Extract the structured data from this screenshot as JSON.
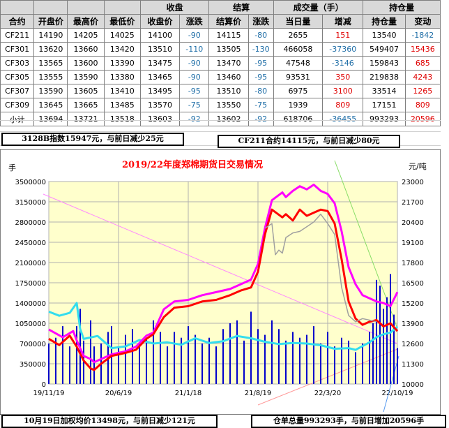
{
  "table": {
    "header_top": {
      "c0": "",
      "c1": "",
      "c2": "",
      "c3": "",
      "close_group": "收盘",
      "settle_group": "结算",
      "volume_group": "成交量（手）",
      "oi_group": "持仓量"
    },
    "header_sub": [
      "合约",
      "开盘价",
      "最高价",
      "最低价",
      "收盘价",
      "涨跌",
      "结算价",
      "涨跌",
      "当日量",
      "增减",
      "持仓量",
      "变动"
    ],
    "rows": [
      [
        "CF211",
        "14190",
        "14205",
        "14025",
        "14100",
        "-90",
        "14115",
        "-80",
        "2655",
        "151",
        "13540",
        "-1842"
      ],
      [
        "CF301",
        "13620",
        "13660",
        "13420",
        "13510",
        "-110",
        "13505",
        "-130",
        "466058",
        "-37360",
        "549407",
        "15436"
      ],
      [
        "CF303",
        "13565",
        "13600",
        "13390",
        "13475",
        "-90",
        "13470",
        "-95",
        "47548",
        "-3146",
        "159843",
        "685"
      ],
      [
        "CF305",
        "13555",
        "13590",
        "13380",
        "13465",
        "-90",
        "13460",
        "-95",
        "93531",
        "350",
        "219838",
        "4243"
      ],
      [
        "CF307",
        "13590",
        "13605",
        "13410",
        "13495",
        "-95",
        "13510",
        "-80",
        "6975",
        "3100",
        "33514",
        "1265"
      ],
      [
        "CF309",
        "13645",
        "13665",
        "13485",
        "13570",
        "-75",
        "13550",
        "-75",
        "1939",
        "809",
        "17151",
        "809"
      ],
      [
        "小计",
        "13694",
        "13721",
        "13518",
        "13603",
        "-92",
        "13602",
        "-92",
        "618706",
        "-36455",
        "993293",
        "20596"
      ]
    ]
  },
  "notes": {
    "index": "3128B指数15947元，与前日减少25元",
    "contract": "CF211合约14115元，与前日减少80元",
    "avg_price": "10月19日加权均价13498元，与前日减少121元",
    "total_oi": "仓单总量993293手，与前日增加20596手"
  },
  "colors": {
    "background": "#ffffcc",
    "volume": "#0000cc",
    "oi": "#33ddee",
    "index": "#ff00ff",
    "price": "#ff0000",
    "contract": "#a0a0a0",
    "title": "#ff0000",
    "change_color": "#1f6ea7",
    "positive_color": "#e00000"
  },
  "chart_data": {
    "type": "line",
    "title": "2019/22年度郑棉期货日交易情况",
    "ylabel_left": "手",
    "ylabel_right": "元/吨",
    "y_left_ticks": [
      "3500000",
      "3150000",
      "2800000",
      "2450000",
      "2100000",
      "1750000",
      "1400000",
      "1050000",
      "700000",
      "350000",
      "0"
    ],
    "y_right_ticks": [
      "23000",
      "21700",
      "20400",
      "19100",
      "17800",
      "16500",
      "15200",
      "13900",
      "12600",
      "11300",
      "10000"
    ],
    "x_ticks": [
      "19/11/19",
      "20/6/19",
      "21/1/18",
      "21/8/19",
      "22/3/20",
      "22/10/19"
    ],
    "ylim_left": [
      0,
      3500000
    ],
    "ylim_right": [
      10000,
      23000
    ],
    "series": [
      {
        "kind": "bar",
        "axis": "left",
        "x": [
          0.0,
          0.02,
          0.04,
          0.06,
          0.08,
          0.09,
          0.1,
          0.12,
          0.13,
          0.15,
          0.17,
          0.18,
          0.2,
          0.22,
          0.24,
          0.26,
          0.28,
          0.3,
          0.32,
          0.34,
          0.36,
          0.38,
          0.4,
          0.42,
          0.44,
          0.46,
          0.48,
          0.5,
          0.52,
          0.54,
          0.56,
          0.58,
          0.6,
          0.62,
          0.64,
          0.66,
          0.68,
          0.7,
          0.72,
          0.74,
          0.76,
          0.78,
          0.8,
          0.82,
          0.84,
          0.86,
          0.88,
          0.9,
          0.92,
          0.93,
          0.94,
          0.95,
          0.96,
          0.97,
          0.98,
          0.99,
          1.0
        ],
        "values": [
          700000,
          800000,
          1000000,
          650000,
          1000000,
          1300000,
          750000,
          1100000,
          650000,
          700000,
          900000,
          1000000,
          650000,
          850000,
          950000,
          700000,
          800000,
          1100000,
          900000,
          650000,
          900000,
          800000,
          1000000,
          850000,
          700000,
          800000,
          650000,
          950000,
          1050000,
          1100000,
          750000,
          1250000,
          950000,
          850000,
          1100000,
          950000,
          750000,
          900000,
          800000,
          850000,
          1000000,
          700000,
          900000,
          650000,
          800000,
          750000,
          550000,
          700000,
          900000,
          1050000,
          1800000,
          1700000,
          1300000,
          1500000,
          1900000,
          1200000,
          620000
        ]
      },
      {
        "name": "",
        "kind": "line",
        "axis": "left",
        "color_key": "oi",
        "x": [
          0.0,
          0.03,
          0.06,
          0.08,
          0.09,
          0.1,
          0.14,
          0.18,
          0.22,
          0.26,
          0.3,
          0.34,
          0.38,
          0.42,
          0.46,
          0.5,
          0.54,
          0.58,
          0.62,
          0.66,
          0.7,
          0.74,
          0.78,
          0.82,
          0.86,
          0.88,
          0.92,
          0.94,
          0.96,
          0.98,
          1.0
        ],
        "values": [
          1250000,
          1180000,
          1230000,
          1400000,
          950000,
          780000,
          830000,
          620000,
          650000,
          760000,
          700000,
          720000,
          680000,
          790000,
          710000,
          740000,
          830000,
          790000,
          730000,
          690000,
          710000,
          700000,
          670000,
          610000,
          620000,
          590000,
          720000,
          810000,
          860000,
          890000,
          990000
        ]
      },
      {
        "name": "",
        "kind": "line",
        "axis": "right",
        "color_key": "index",
        "x": [
          0.0,
          0.04,
          0.07,
          0.08,
          0.1,
          0.12,
          0.13,
          0.15,
          0.18,
          0.2,
          0.22,
          0.25,
          0.28,
          0.3,
          0.33,
          0.36,
          0.4,
          0.44,
          0.48,
          0.52,
          0.55,
          0.58,
          0.6,
          0.62,
          0.64,
          0.67,
          0.68,
          0.7,
          0.72,
          0.74,
          0.76,
          0.78,
          0.8,
          0.82,
          0.84,
          0.86,
          0.88,
          0.9,
          0.92,
          0.94,
          0.96,
          0.98,
          1.0
        ],
        "values": [
          13500,
          13000,
          13400,
          12800,
          11800,
          11600,
          11400,
          11600,
          11900,
          12000,
          12100,
          12400,
          13100,
          13300,
          14800,
          15300,
          15400,
          15700,
          15900,
          16100,
          16400,
          16700,
          17700,
          20000,
          21800,
          22300,
          22000,
          22400,
          22700,
          22500,
          22800,
          22400,
          22200,
          21600,
          19800,
          17500,
          16400,
          15700,
          15500,
          15300,
          15200,
          15000,
          15900
        ]
      },
      {
        "name": "",
        "kind": "line",
        "axis": "right",
        "color_key": "price",
        "x": [
          0.0,
          0.03,
          0.06,
          0.08,
          0.1,
          0.12,
          0.13,
          0.15,
          0.18,
          0.2,
          0.22,
          0.25,
          0.28,
          0.3,
          0.33,
          0.36,
          0.4,
          0.44,
          0.48,
          0.52,
          0.55,
          0.58,
          0.6,
          0.62,
          0.64,
          0.67,
          0.68,
          0.7,
          0.72,
          0.74,
          0.76,
          0.78,
          0.8,
          0.82,
          0.84,
          0.86,
          0.88,
          0.9,
          0.92,
          0.94,
          0.96,
          0.98,
          1.0
        ],
        "values": [
          12900,
          12500,
          13100,
          12400,
          11500,
          11000,
          10900,
          11300,
          11800,
          11900,
          12000,
          12200,
          12900,
          13200,
          14300,
          14900,
          15000,
          15300,
          15400,
          15700,
          16000,
          16200,
          17200,
          19600,
          21200,
          20700,
          20900,
          20500,
          21200,
          20800,
          21000,
          21200,
          21100,
          20300,
          18000,
          15300,
          14200,
          13800,
          14000,
          14100,
          13700,
          13900,
          13400
        ]
      },
      {
        "name": "",
        "kind": "line",
        "axis": "right",
        "color_key": "contract",
        "x": [
          0.62,
          0.64,
          0.65,
          0.66,
          0.67,
          0.68,
          0.7,
          0.72,
          0.74,
          0.76,
          0.78,
          0.8,
          0.82,
          0.84,
          0.86,
          0.88,
          0.9,
          0.92,
          0.94
        ],
        "values": [
          20000,
          20300,
          18300,
          18600,
          18400,
          19400,
          19700,
          19800,
          20100,
          20400,
          20900,
          20300,
          19600,
          16200,
          14400,
          14000,
          14200,
          14100,
          14000
        ]
      }
    ]
  }
}
